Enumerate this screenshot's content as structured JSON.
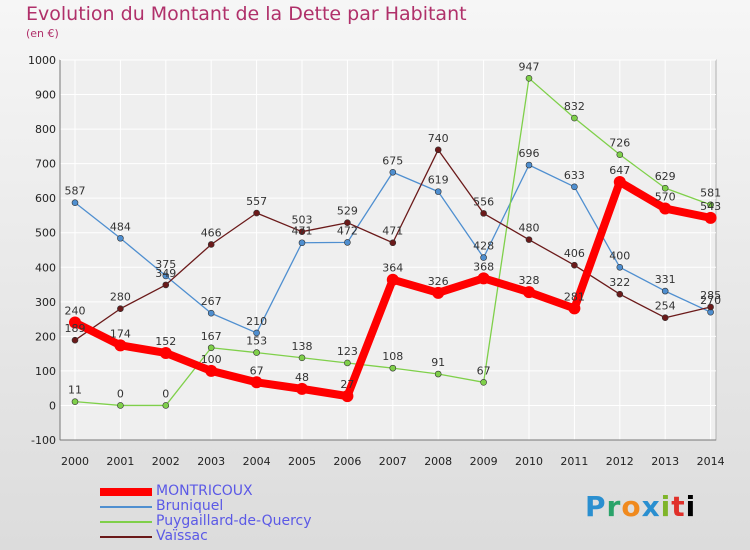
{
  "chart_data": {
    "type": "line",
    "title": "Evolution du Montant de la Dette par Habitant",
    "subtitle": "(en €)",
    "xlabel": "",
    "ylabel": "",
    "categories": [
      "2000",
      "2001",
      "2002",
      "2003",
      "2004",
      "2005",
      "2006",
      "2007",
      "2008",
      "2009",
      "2010",
      "2011",
      "2012",
      "2013",
      "2014"
    ],
    "ylim": [
      -100,
      1000
    ],
    "yticks": [
      "-100",
      "0",
      "100",
      "200",
      "300",
      "400",
      "500",
      "600",
      "700",
      "800",
      "900",
      "1000"
    ],
    "grid": true,
    "legend_position": "bottom-left",
    "series": [
      {
        "name": "MONTRICOUX",
        "color": "#ff0000",
        "values": [
          240,
          174,
          152,
          100,
          67,
          48,
          27,
          364,
          326,
          368,
          328,
          281,
          647,
          570,
          543
        ],
        "labels": [
          "240",
          "174",
          "152",
          "100",
          "67",
          "48",
          "27",
          "364",
          "326",
          "368",
          "328",
          "281",
          "647",
          "570",
          "543"
        ]
      },
      {
        "name": "Bruniquel",
        "color": "#4f8fd0",
        "values": [
          587,
          484,
          375,
          267,
          210,
          471,
          472,
          675,
          619,
          428,
          696,
          633,
          400,
          331,
          270
        ],
        "labels": [
          "587",
          "484",
          "375",
          "267",
          "210",
          "471",
          "472",
          "675",
          "619",
          "428",
          "696",
          "633",
          "400",
          "331",
          "270"
        ]
      },
      {
        "name": "Puygaillard-de-Quercy",
        "color": "#7fd04a",
        "values": [
          11,
          0,
          0,
          167,
          153,
          138,
          123,
          108,
          91,
          67,
          947,
          832,
          726,
          629,
          581
        ],
        "labels": [
          "11",
          "0",
          "0",
          "167",
          "153",
          "138",
          "123",
          "108",
          "91",
          "67",
          "947",
          "832",
          "726",
          "629",
          "581"
        ]
      },
      {
        "name": "Vaïssac",
        "color": "#6b1a1a",
        "values": [
          189,
          280,
          349,
          466,
          557,
          503,
          529,
          471,
          740,
          556,
          480,
          406,
          322,
          254,
          285
        ],
        "labels": [
          "189",
          "280",
          "349",
          "466",
          "557",
          "503",
          "529",
          "471",
          "740",
          "556",
          "480",
          "406",
          "322",
          "254",
          "285"
        ]
      }
    ]
  },
  "brand": {
    "letters": [
      "P",
      "r",
      "o",
      "x",
      "i",
      "t",
      "i"
    ]
  }
}
